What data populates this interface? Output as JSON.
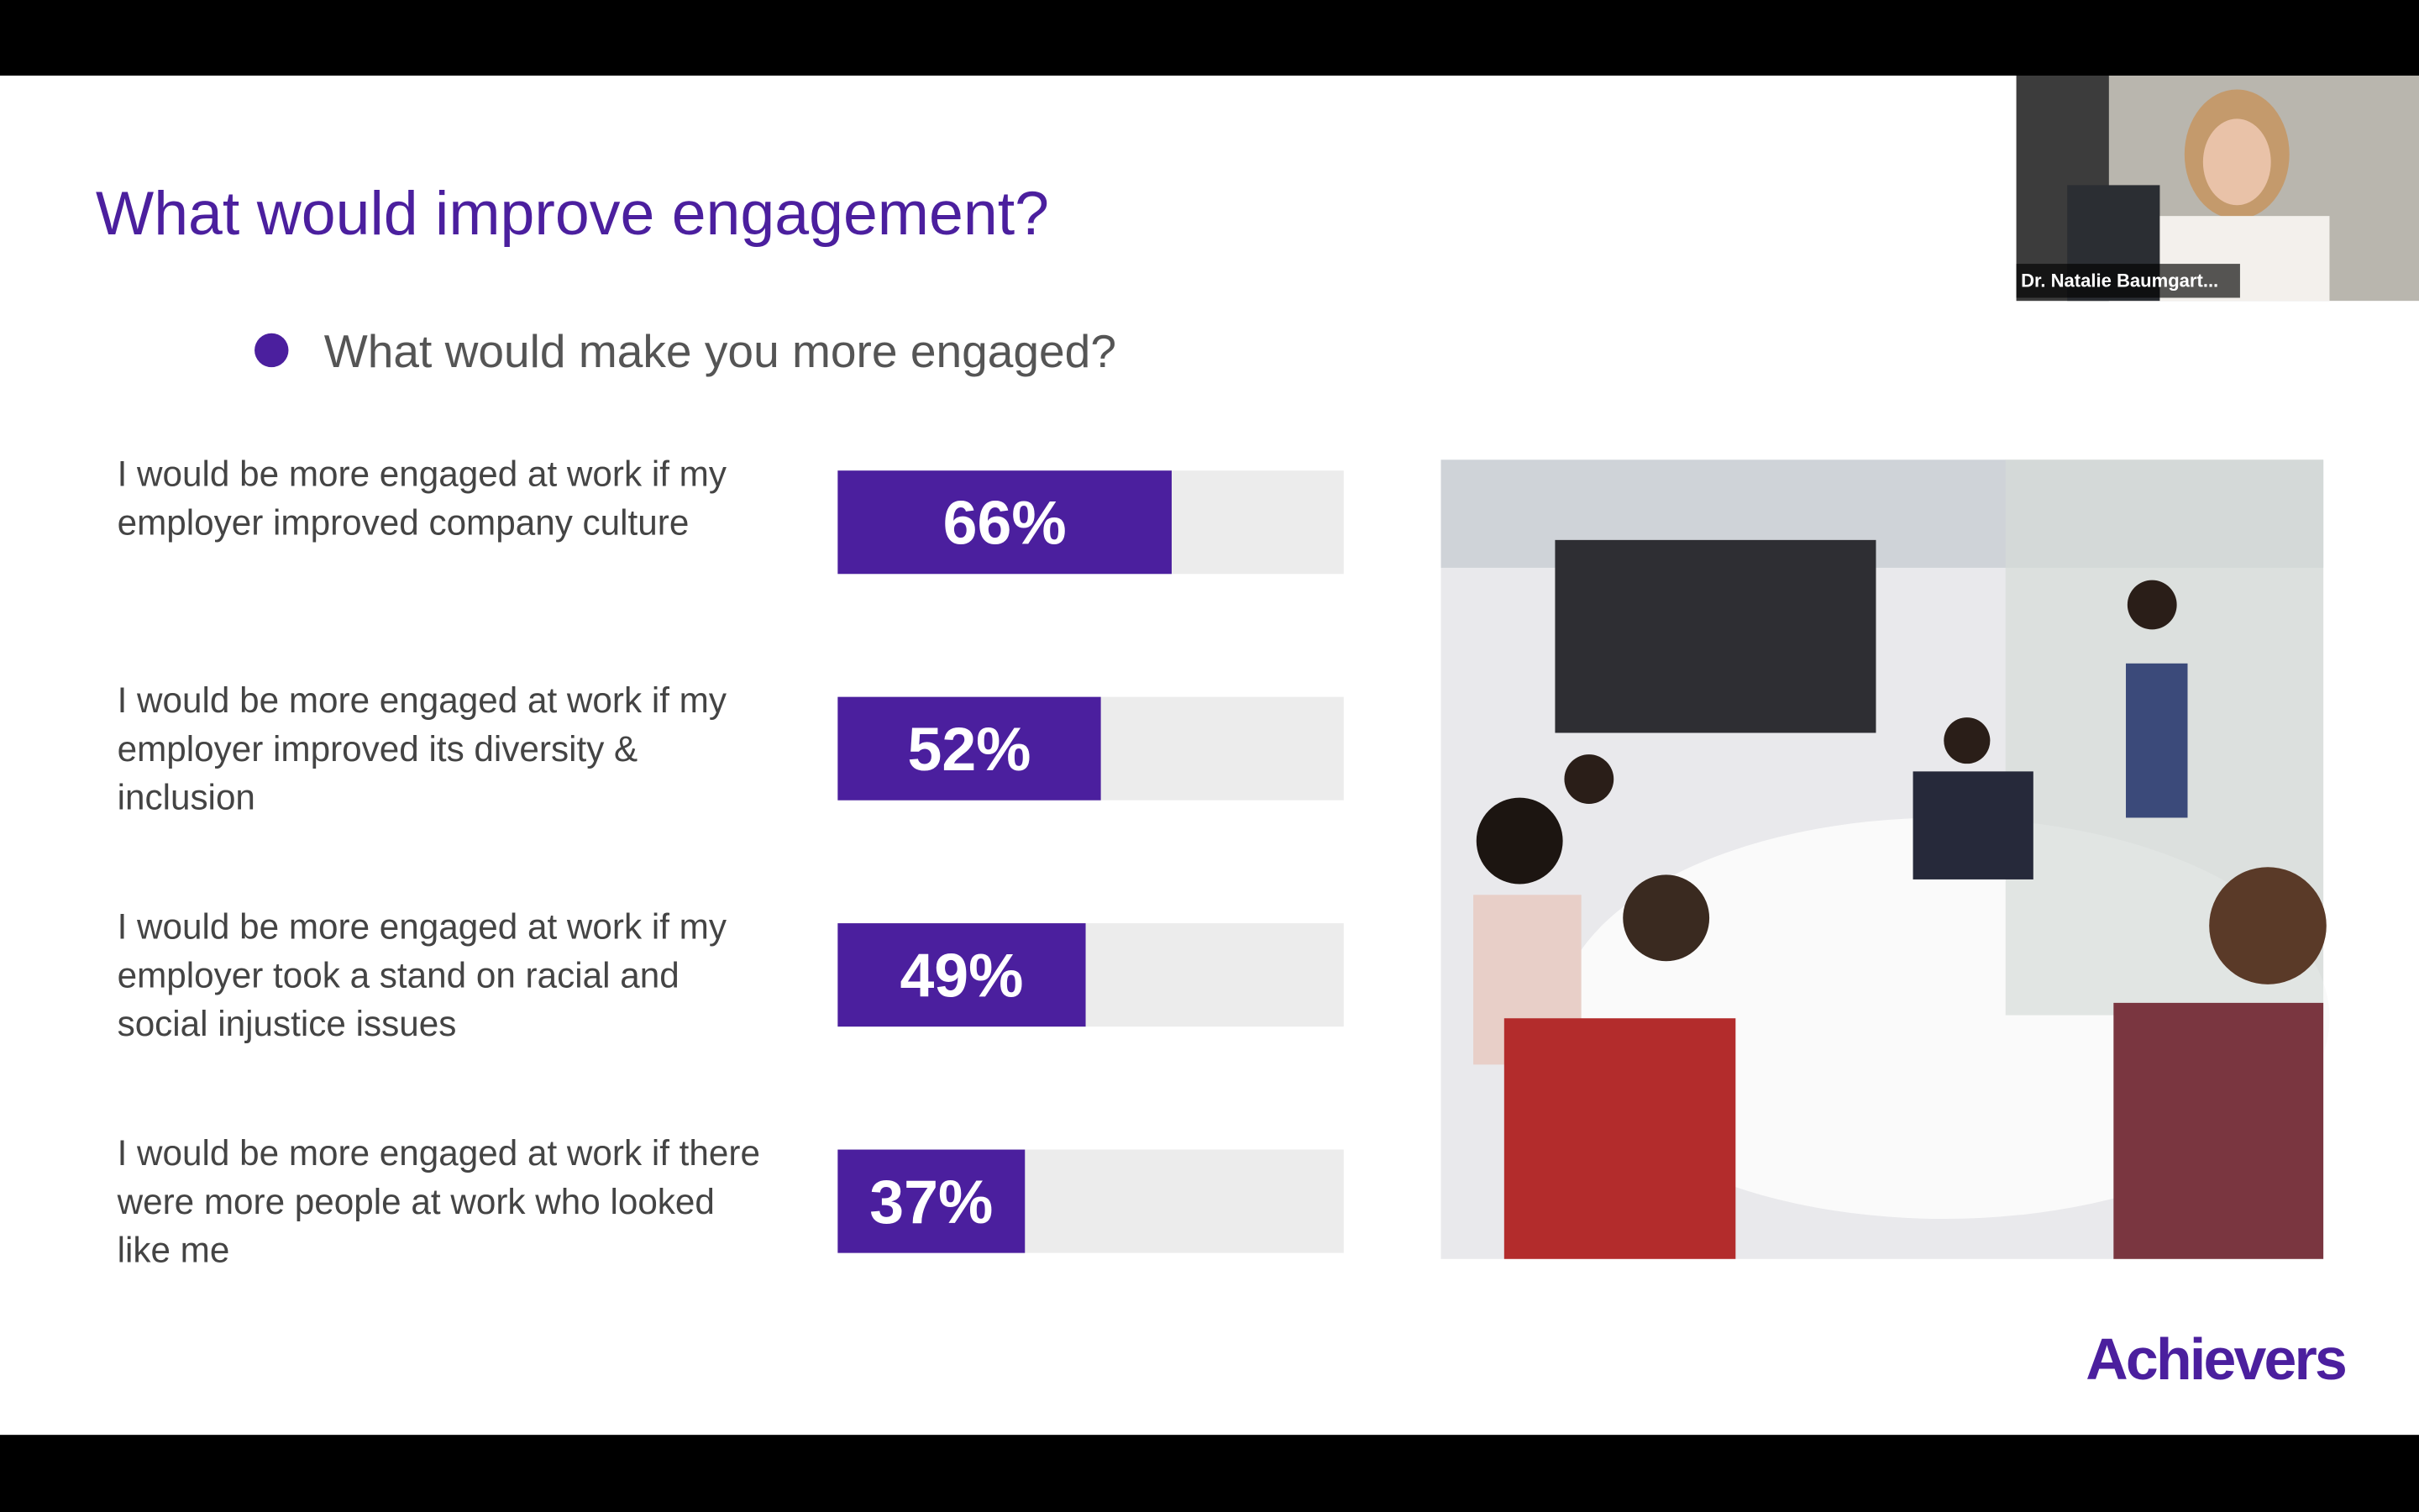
{
  "slide": {
    "title": "What would improve engagement?",
    "bullet": "What would make you more engaged?",
    "logo": "Achievers"
  },
  "video": {
    "participant": "Dr. Natalie Baumgart..."
  },
  "chart_data": {
    "type": "bar",
    "orientation": "horizontal",
    "categories": [
      "I would be more engaged at work if my employer improved company culture",
      "I would be more engaged at work if my employer improved its diversity & inclusion",
      "I would be more engaged at work if my employer took a stand on racial and social injustice issues",
      "I would be more engaged at work if there were more people at work who looked like me"
    ],
    "values": [
      66,
      52,
      49,
      37
    ],
    "value_labels": [
      "66%",
      "52%",
      "49%",
      "37%"
    ],
    "xlim": [
      0,
      100
    ],
    "color": "#4b1f9e",
    "track_color": "#ececec"
  }
}
